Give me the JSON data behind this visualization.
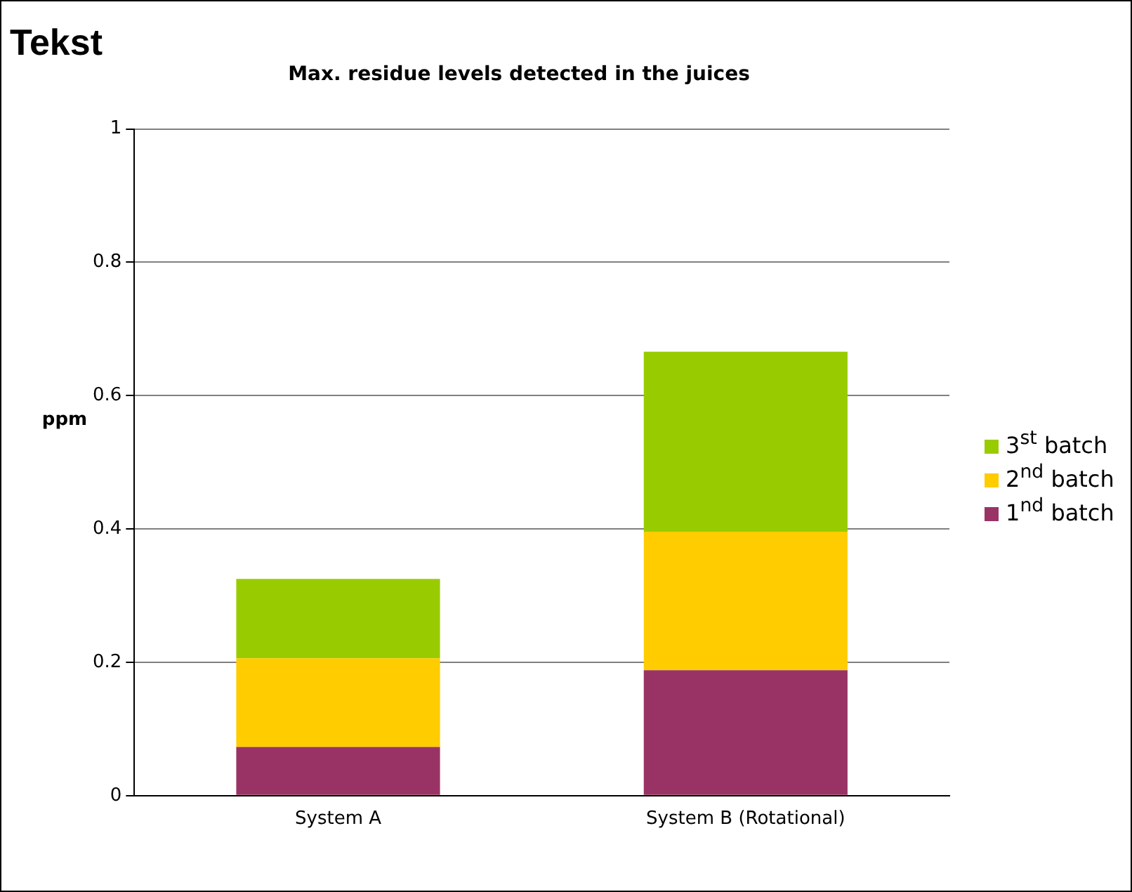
{
  "chart_data": {
    "type": "bar",
    "title": "Max. residue levels detected in the juices",
    "ylabel": "ppm",
    "annotations": [
      "Tekst"
    ],
    "categories": [
      "System A",
      "System B (Rotational)"
    ],
    "series": [
      {
        "name": "1$^{nd}$ batch",
        "color": "#993366",
        "values": [
          0.073,
          0.188
        ]
      },
      {
        "name": "2$^{nd}$ batch",
        "color": "#ffcc00",
        "values": [
          0.133,
          0.208
        ]
      },
      {
        "name": "3$^{st}$ batch",
        "color": "#99cc00",
        "values": [
          0.119,
          0.27
        ]
      }
    ],
    "stacked": true,
    "ylim": [
      0,
      1
    ],
    "yticks": [
      0,
      0.2,
      0.4,
      0.6,
      0.8,
      1
    ],
    "grid": "y",
    "legend": "right"
  }
}
